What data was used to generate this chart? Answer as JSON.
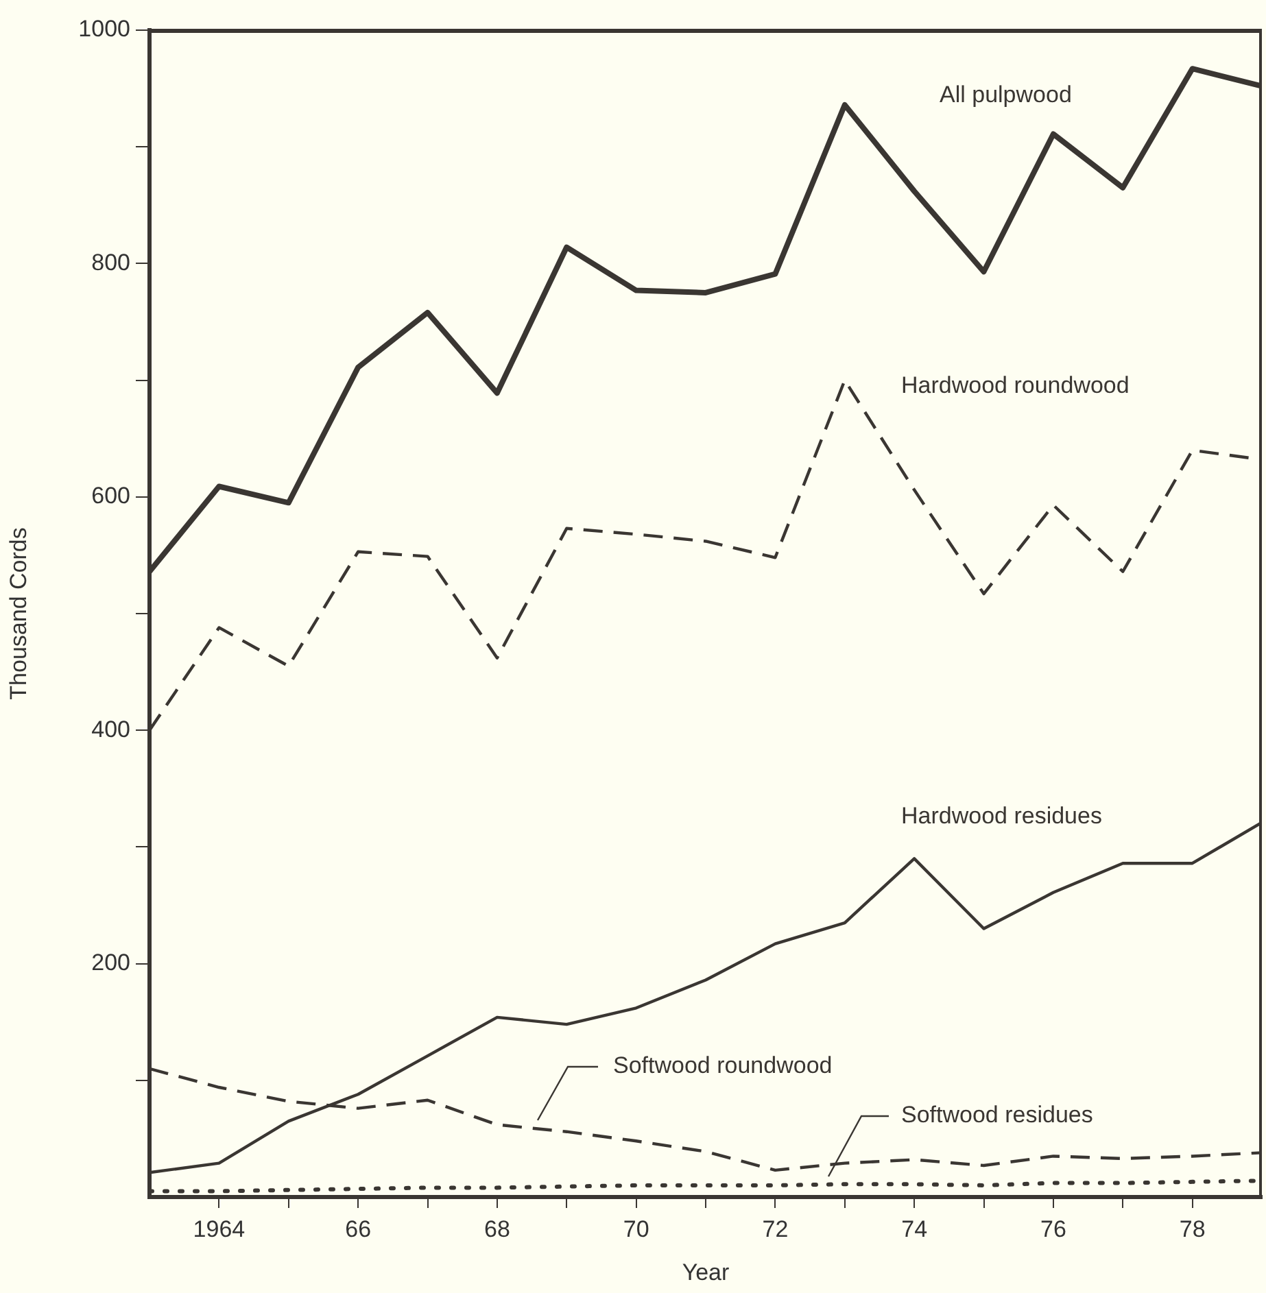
{
  "chart_data": {
    "type": "line",
    "xlabel": "Year",
    "ylabel": "Thousand Cords",
    "x": [
      1963,
      1964,
      1965,
      1966,
      1967,
      1968,
      1969,
      1970,
      1971,
      1972,
      1973,
      1974,
      1975,
      1976,
      1977,
      1978,
      1979
    ],
    "series": [
      {
        "name": "All pulpwood",
        "color": "#3a3632",
        "line_style": "solid",
        "values": [
          536,
          609,
          595,
          711,
          758,
          689,
          814,
          777,
          775,
          791,
          936,
          862,
          793,
          911,
          865,
          967,
          952
        ]
      },
      {
        "name": "Hardwood roundwood",
        "color": "#3a3632",
        "line_style": "dashed",
        "values": [
          400,
          488,
          455,
          553,
          549,
          462,
          573,
          568,
          562,
          548,
          700,
          606,
          517,
          593,
          536,
          640,
          632
        ]
      },
      {
        "name": "Hardwood residues",
        "color": "#3a3632",
        "line_style": "solid",
        "values": [
          21,
          29,
          65,
          88,
          121,
          154,
          148,
          162,
          186,
          217,
          235,
          290,
          230,
          261,
          286,
          286,
          321
        ]
      },
      {
        "name": "Softwood roundwood",
        "color": "#3a3632",
        "line_style": "dashed",
        "values": [
          110,
          94,
          82,
          76,
          83,
          62,
          56,
          48,
          39,
          23,
          29,
          32,
          27,
          35,
          33,
          35,
          38
        ]
      },
      {
        "name": "Softwood residues",
        "color": "#3a3632",
        "line_style": "dotted",
        "values": [
          5,
          5,
          6,
          7,
          8,
          8,
          9,
          10,
          10,
          10,
          11,
          11,
          10,
          12,
          12,
          13,
          14
        ]
      }
    ],
    "xlim": [
      1963,
      1979
    ],
    "xticks": [
      {
        "value": 1964,
        "label": "1964"
      },
      {
        "value": 1965,
        "label": null
      },
      {
        "value": 1966,
        "label": "66"
      },
      {
        "value": 1967,
        "label": null
      },
      {
        "value": 1968,
        "label": "68"
      },
      {
        "value": 1969,
        "label": null
      },
      {
        "value": 1970,
        "label": "70"
      },
      {
        "value": 1971,
        "label": null
      },
      {
        "value": 1972,
        "label": "72"
      },
      {
        "value": 1973,
        "label": null
      },
      {
        "value": 1974,
        "label": "74"
      },
      {
        "value": 1975,
        "label": null
      },
      {
        "value": 1976,
        "label": "76"
      },
      {
        "value": 1977,
        "label": null
      },
      {
        "value": 1978,
        "label": "78"
      }
    ],
    "ylim": [
      0,
      1000
    ],
    "yticks": [
      {
        "value": 100,
        "label": null
      },
      200,
      {
        "value": 300,
        "label": null
      },
      400,
      {
        "value": 500,
        "label": null
      },
      600,
      {
        "value": 700,
        "label": null
      },
      800,
      {
        "value": 900,
        "label": null
      },
      1000
    ],
    "grid": false,
    "legend": false,
    "marker": "none"
  }
}
